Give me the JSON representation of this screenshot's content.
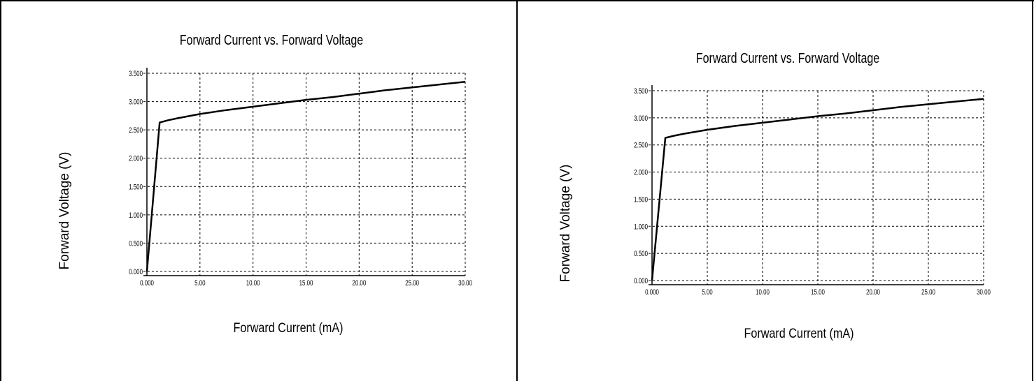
{
  "chart_data": [
    {
      "type": "line",
      "title": "Forward Current vs. Forward Voltage",
      "xlabel": "Forward Current (mA)",
      "ylabel": "Forward Voltage (V)",
      "xlim": [
        0,
        30
      ],
      "ylim": [
        0,
        3.5
      ],
      "grid": true,
      "x_ticks": [
        "0.000",
        "5.00",
        "10.00",
        "15.00",
        "20.00",
        "25.00",
        "30.00"
      ],
      "y_ticks": [
        "0.000",
        "0.500",
        "1.000",
        "1.500",
        "2.000",
        "2.500",
        "3.000",
        "3.500"
      ],
      "series": [
        {
          "x": [
            0,
            1.2,
            2,
            3,
            5,
            7.5,
            10,
            12.5,
            15,
            17.5,
            20,
            22.5,
            25,
            27.5,
            30
          ],
          "values": [
            0,
            2.63,
            2.67,
            2.71,
            2.78,
            2.85,
            2.91,
            2.97,
            3.03,
            3.08,
            3.14,
            3.2,
            3.25,
            3.3,
            3.35
          ]
        }
      ]
    },
    {
      "type": "line",
      "title": "Forward Current vs. Forward Voltage",
      "xlabel": "Forward Current (mA)",
      "ylabel": "Forward Voltage (V)",
      "xlim": [
        0,
        30
      ],
      "ylim": [
        0,
        3.5
      ],
      "grid": true,
      "x_ticks": [
        "0.000",
        "5.00",
        "10.00",
        "15.00",
        "20.00",
        "25.00",
        "30.00"
      ],
      "y_ticks": [
        "0.000",
        "0.500",
        "1.000",
        "1.500",
        "2.000",
        "2.500",
        "3.000",
        "3.500"
      ],
      "series": [
        {
          "x": [
            0,
            1.2,
            2,
            3,
            5,
            7.5,
            10,
            12.5,
            15,
            17.5,
            20,
            22.5,
            25,
            27.5,
            30
          ],
          "values": [
            0,
            2.63,
            2.67,
            2.71,
            2.78,
            2.85,
            2.91,
            2.97,
            3.03,
            3.08,
            3.14,
            3.2,
            3.25,
            3.3,
            3.35
          ]
        }
      ]
    }
  ]
}
